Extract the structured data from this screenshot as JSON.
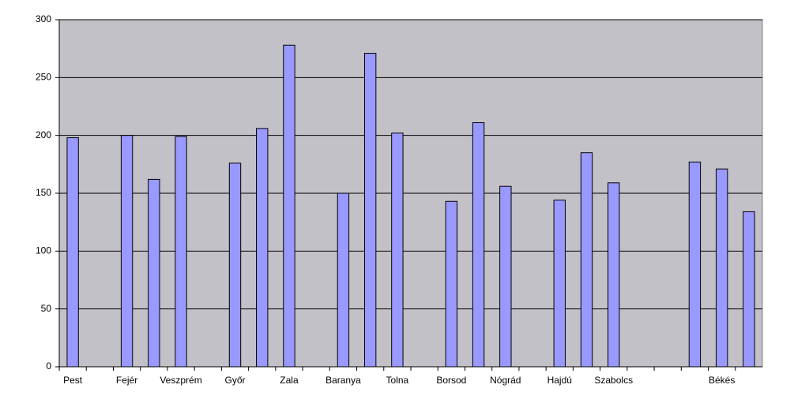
{
  "chart_data": {
    "type": "bar",
    "categories": [
      "Pest",
      null,
      "Fejér",
      null,
      "Veszprém",
      null,
      "Győr",
      null,
      "Zala",
      null,
      "Baranya",
      null,
      "Tolna",
      null,
      "Borsod",
      null,
      "Nógrád",
      null,
      "Hajdú",
      null,
      "Szabolcs",
      null,
      null,
      null,
      "Békés",
      null
    ],
    "values": [
      198,
      null,
      200,
      162,
      199,
      null,
      176,
      206,
      278,
      null,
      150,
      271,
      202,
      null,
      143,
      211,
      156,
      null,
      144,
      185,
      159,
      null,
      null,
      177,
      171,
      134
    ],
    "color": "#9999ff",
    "ylim": [
      0,
      300
    ],
    "yticks": [
      0,
      50,
      100,
      150,
      200,
      250,
      300
    ],
    "grid": true
  }
}
